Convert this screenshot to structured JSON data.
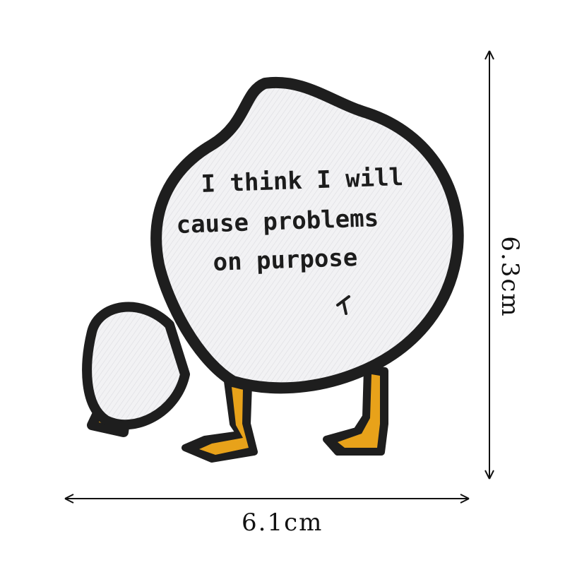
{
  "patch": {
    "text_lines": [
      "I think I will",
      "cause problems",
      "on purpose"
    ],
    "colors": {
      "fabric": "#f2f2f4",
      "outline": "#1e1e1e",
      "feet": "#e8a21a",
      "background": "#ffffff"
    }
  },
  "dimensions": {
    "width_label": "6.1cm",
    "height_label": "6.3cm"
  }
}
